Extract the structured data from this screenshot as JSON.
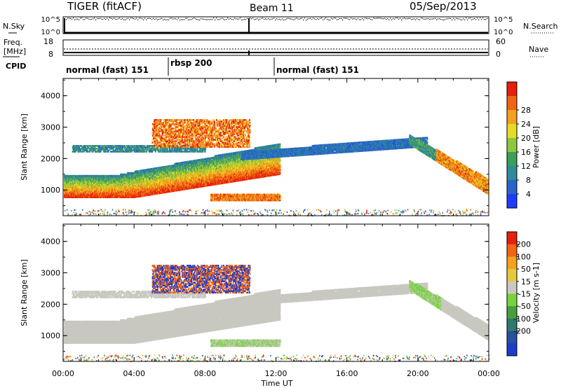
{
  "header": {
    "radar": "TIGER (fitACF)",
    "beam": "Beam 11",
    "date": "05/Sep/2013"
  },
  "top_panels": {
    "nsky": {
      "label": "N.Sky",
      "ticks_left": [
        "10^5",
        "10^0"
      ],
      "ticks_right": [
        "10^5",
        "10^0"
      ],
      "right_label": "N.Search"
    },
    "freq": {
      "label_line1": "Freq.",
      "label_line2": "[MHz]",
      "ticks_left": [
        "18",
        "8"
      ],
      "ticks_right": [
        "60",
        "0"
      ],
      "right_label": "Nave"
    },
    "cpid": {
      "label": "CPID",
      "segments": [
        {
          "text": "normal (fast) 151",
          "start_hour": 0
        },
        {
          "text": "rbsp 200",
          "start_hour": 6
        },
        {
          "text": "normal (fast) 151",
          "start_hour": 12
        }
      ]
    }
  },
  "chart_data": [
    {
      "type": "heatmap",
      "title": "Power",
      "xlabel": "Time UT",
      "ylabel": "Slant Range [km]",
      "x_ticks": [
        "00:00",
        "04:00",
        "08:00",
        "12:00",
        "16:00",
        "20:00",
        "00:00"
      ],
      "xlim_hours": [
        0,
        24
      ],
      "y_ticks": [
        1000,
        2000,
        3000,
        4000
      ],
      "ylim_km": [
        180,
        4550
      ],
      "colorbar": {
        "label": "Power [dB]",
        "ticks": [
          "4",
          "8",
          "12",
          "16",
          "20",
          "24",
          "28"
        ],
        "range": [
          0,
          30
        ],
        "colors": [
          "#1e3cff",
          "#2a64c8",
          "#2f8a9a",
          "#3c9e5a",
          "#8cc83c",
          "#e6dc28",
          "#f5a01e",
          "#f06414",
          "#e61e0a"
        ]
      }
    },
    {
      "type": "heatmap",
      "title": "Velocity",
      "xlabel": "Time UT",
      "ylabel": "Slant Range [km]",
      "x_ticks": [
        "00:00",
        "04:00",
        "08:00",
        "12:00",
        "16:00",
        "20:00",
        "00:00"
      ],
      "xlim_hours": [
        0,
        24
      ],
      "y_ticks": [
        1000,
        2000,
        3000,
        4000
      ],
      "ylim_km": [
        180,
        4550
      ],
      "colorbar": {
        "label": "Velocity [m s-1]",
        "ticks": [
          "200",
          "100",
          "50",
          "15",
          "-15",
          "-50",
          "-100",
          "-200"
        ],
        "range": [
          -250,
          250
        ],
        "colors": [
          "#1e3cc8",
          "#2850a0",
          "#2d7a6e",
          "#46a03c",
          "#78d23c",
          "#c8c8c0",
          "#e6c83c",
          "#f5a01e",
          "#f06414",
          "#e61e0a"
        ]
      }
    }
  ]
}
